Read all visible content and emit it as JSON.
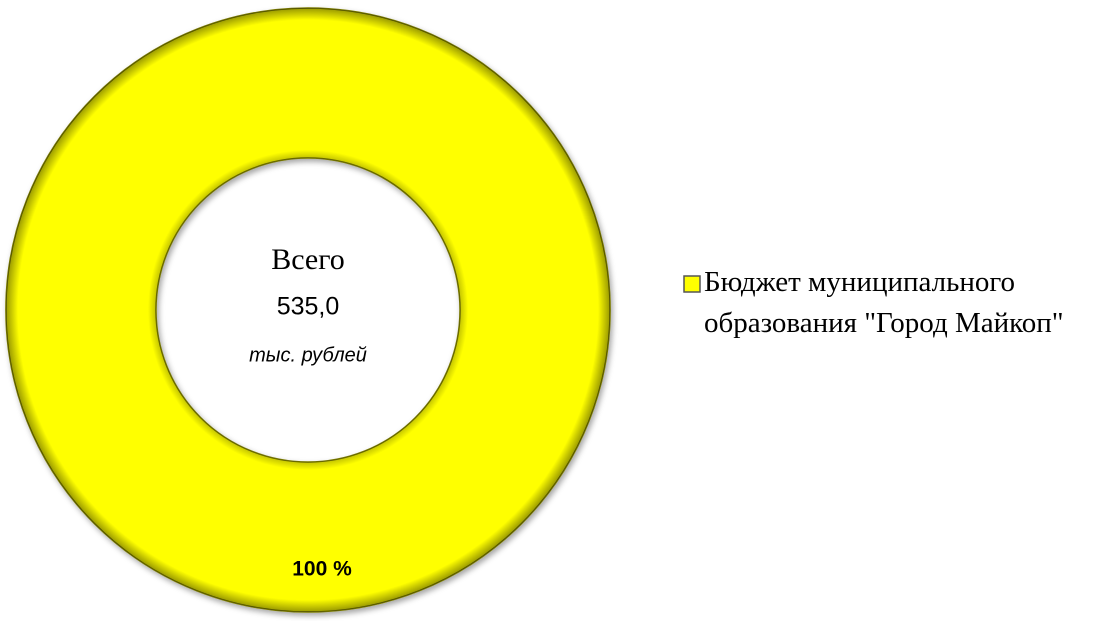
{
  "chart_data": {
    "type": "donut",
    "center_title": "Всего",
    "center_value": "535,0",
    "center_unit": "тыс. рублей",
    "categories": [
      "Бюджет муниципального образования \"Город Майкоп\""
    ],
    "values": [
      100
    ],
    "value_labels": [
      "100 %"
    ],
    "colors": [
      "#ffff00"
    ]
  }
}
